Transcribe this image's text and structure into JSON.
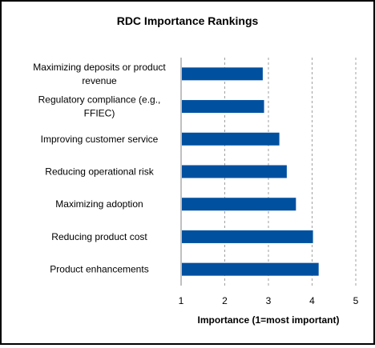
{
  "chart_data": {
    "type": "bar",
    "orientation": "horizontal",
    "title": "RDC Importance Rankings",
    "xlabel": "Importance (1=most important)",
    "ylabel": "",
    "xlim": [
      1,
      5
    ],
    "xticks": [
      "1",
      "2",
      "3",
      "4",
      "5"
    ],
    "grid": "vertical-dashed",
    "legend": "none",
    "bar_color": "#0050a0",
    "categories": [
      [
        "Maximizing deposits or product",
        "revenue"
      ],
      [
        "Regulatory compliance (e.g.,",
        "FFIEC)"
      ],
      [
        "Improving customer service"
      ],
      [
        "Reducing operational risk"
      ],
      [
        "Maximizing adoption"
      ],
      [
        "Reducing product cost"
      ],
      [
        "Product enhancements"
      ]
    ],
    "values": [
      2.87,
      2.9,
      3.25,
      3.42,
      3.63,
      4.02,
      4.15
    ]
  }
}
